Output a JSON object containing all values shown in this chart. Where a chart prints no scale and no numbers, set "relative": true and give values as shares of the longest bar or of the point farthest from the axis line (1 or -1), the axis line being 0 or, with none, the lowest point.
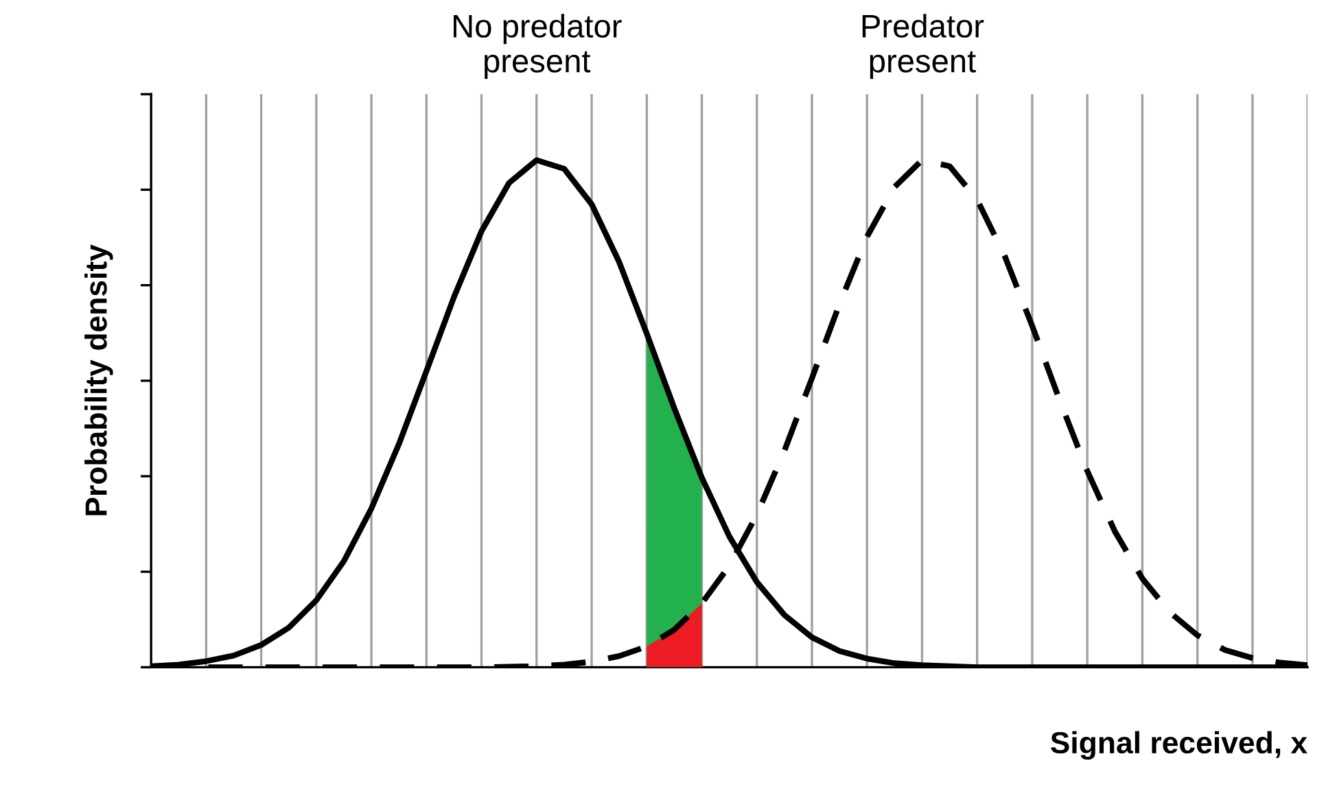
{
  "chart_data": {
    "type": "line",
    "relative": true,
    "xlabel": "Signal received, x",
    "ylabel": "Probability density",
    "grid": "x",
    "marker": "none",
    "annotations": [
      "No predator\npresent",
      "Predator\npresent"
    ],
    "categories": [
      null,
      null,
      null,
      null,
      null,
      null,
      null,
      null,
      null,
      null,
      null,
      null,
      null,
      null,
      null,
      null,
      null,
      null,
      null,
      null,
      null,
      null,
      null,
      null,
      null,
      null,
      null,
      null,
      null,
      null,
      null,
      null,
      null,
      null,
      null,
      null,
      null,
      null,
      null,
      null,
      null,
      null,
      null
    ],
    "series": [
      {
        "color": "#000000",
        "line_style": "solid",
        "values": [
          0.002,
          0.005,
          0.012,
          0.023,
          0.044,
          0.078,
          0.132,
          0.209,
          0.313,
          0.44,
          0.584,
          0.73,
          0.86,
          0.955,
          1,
          0.983,
          0.913,
          0.799,
          0.658,
          0.511,
          0.374,
          0.258,
          0.168,
          0.103,
          0.059,
          0.032,
          0.017,
          0.008,
          0.004,
          0.002,
          0,
          0,
          0,
          0,
          0,
          0,
          0,
          0,
          0,
          0,
          0,
          0,
          0
        ]
      },
      {
        "color": "#000000",
        "line_style": "dashed",
        "values": [
          0,
          0,
          0,
          0,
          0,
          0,
          0,
          0,
          0,
          0,
          0,
          0,
          0,
          0.001,
          0.002,
          0.005,
          0.011,
          0.022,
          0.041,
          0.074,
          0.126,
          0.2,
          0.301,
          0.427,
          0.57,
          0.716,
          0.849,
          0.947,
          1,
          0.988,
          0.922,
          0.811,
          0.673,
          0.526,
          0.387,
          0.268,
          0.175,
          0.108,
          0.063,
          0.034,
          0.018,
          0.009,
          0.004
        ]
      },
      {
        "type": "area",
        "color": "#22b14c",
        "values": [
          null,
          null,
          null,
          null,
          null,
          null,
          null,
          null,
          null,
          null,
          null,
          null,
          null,
          null,
          null,
          null,
          null,
          null,
          0.658,
          0.511,
          0.374,
          null,
          null,
          null,
          null,
          null,
          null,
          null,
          null,
          null,
          null,
          null,
          null,
          null,
          null,
          null,
          null,
          null,
          null,
          null,
          null,
          null,
          null
        ]
      },
      {
        "type": "area",
        "color": "#ed1c24",
        "values": [
          null,
          null,
          null,
          null,
          null,
          null,
          null,
          null,
          null,
          null,
          null,
          null,
          null,
          null,
          null,
          null,
          null,
          null,
          0.041,
          0.074,
          0.126,
          null,
          null,
          null,
          null,
          null,
          null,
          null,
          null,
          null,
          null,
          null,
          null,
          null,
          null,
          null,
          null,
          null,
          null,
          null,
          null,
          null,
          null
        ]
      }
    ]
  }
}
